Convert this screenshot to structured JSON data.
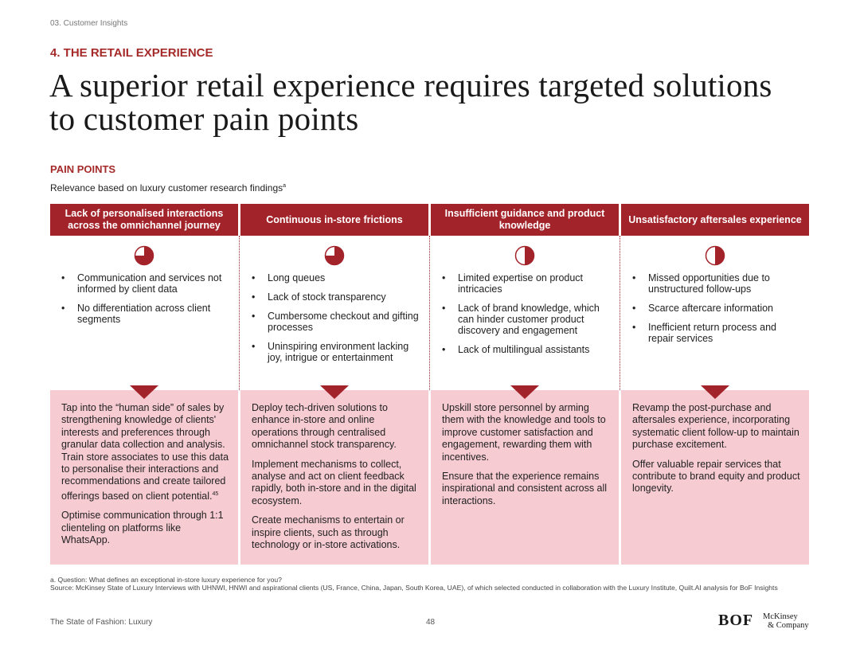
{
  "header": {
    "breadcrumb": "03. Customer Insights",
    "section": "4. THE RETAIL EXPERIENCE",
    "title": "A superior retail experience requires targeted solutions to customer pain points"
  },
  "pain_points": {
    "label": "PAIN POINTS",
    "subtitle": "Relevance based on luxury customer research findings",
    "subtitle_sup": "a",
    "accent_color": "#a3232a",
    "solution_bg": "#f6cbd2",
    "columns": [
      {
        "heading": "Lack of personalised interactions across the omnichannel journey",
        "relevance_fraction": 0.75,
        "relevance_icon": "three-quarter-pie-icon",
        "bullets": [
          "Communication and services not informed by client data",
          "No differentiation across client segments"
        ],
        "solutions": [
          "Tap into the “human side” of sales by strengthening knowledge of clients' interests and preferences through granular data collection and analysis. Train store associates to use this data to personalise their interactions and recommendations and create tailored offerings based on client potential.",
          "Optimise communication through 1:1 clienteling on platforms like WhatsApp."
        ],
        "solution_sup": "45"
      },
      {
        "heading": "Continuous in-store frictions",
        "relevance_fraction": 0.75,
        "relevance_icon": "three-quarter-pie-icon",
        "bullets": [
          "Long queues",
          "Lack of stock transparency",
          "Cumbersome checkout and gifting processes",
          "Uninspiring environment lacking joy, intrigue or entertainment"
        ],
        "solutions": [
          "Deploy tech-driven solutions to enhance in-store and online operations through centralised omnichannel stock transparency.",
          "Implement mechanisms to collect, analyse and act on client feedback rapidly, both in-store and in the digital ecosystem.",
          "Create mechanisms to entertain or inspire clients, such as through technology or in-store activations."
        ]
      },
      {
        "heading": "Insufficient guidance and product knowledge",
        "relevance_fraction": 0.5,
        "relevance_icon": "half-pie-icon",
        "bullets": [
          "Limited expertise on product intricacies",
          "Lack of brand knowledge, which can hinder customer product discovery and engagement",
          "Lack of multilingual assistants"
        ],
        "solutions": [
          "Upskill store personnel by arming them with the knowledge and tools to improve customer satisfaction and engagement, rewarding them with incentives.",
          "Ensure that the experience remains inspirational and consistent across all interactions."
        ]
      },
      {
        "heading": "Unsatisfactory aftersales experience",
        "relevance_fraction": 0.5,
        "relevance_icon": "half-pie-icon",
        "bullets": [
          "Missed opportunities due to unstructured follow-ups",
          "Scarce aftercare information",
          "Inefficient return process and repair services"
        ],
        "solutions": [
          "Revamp the post-purchase and aftersales experience, incorporating systematic client follow-up to maintain purchase excitement.",
          "Offer valuable repair services that contribute to brand equity and product longevity."
        ]
      }
    ]
  },
  "footnotes": {
    "question": "a. Question: What defines an exceptional in-store luxury experience for you?",
    "source": "Source: McKinsey State of Luxury Interviews with UHNWI, HNWI and aspirational clients (US, France, China, Japan, South Korea, UAE), of which selected conducted in collaboration with the Luxury Institute, Quilt.AI analysis for BoF Insights"
  },
  "footer": {
    "publication": "The State of Fashion: Luxury",
    "page_number": "48",
    "bof_logo": "BOF",
    "mckinsey_line1": "McKinsey",
    "mckinsey_line2": "& Company"
  }
}
